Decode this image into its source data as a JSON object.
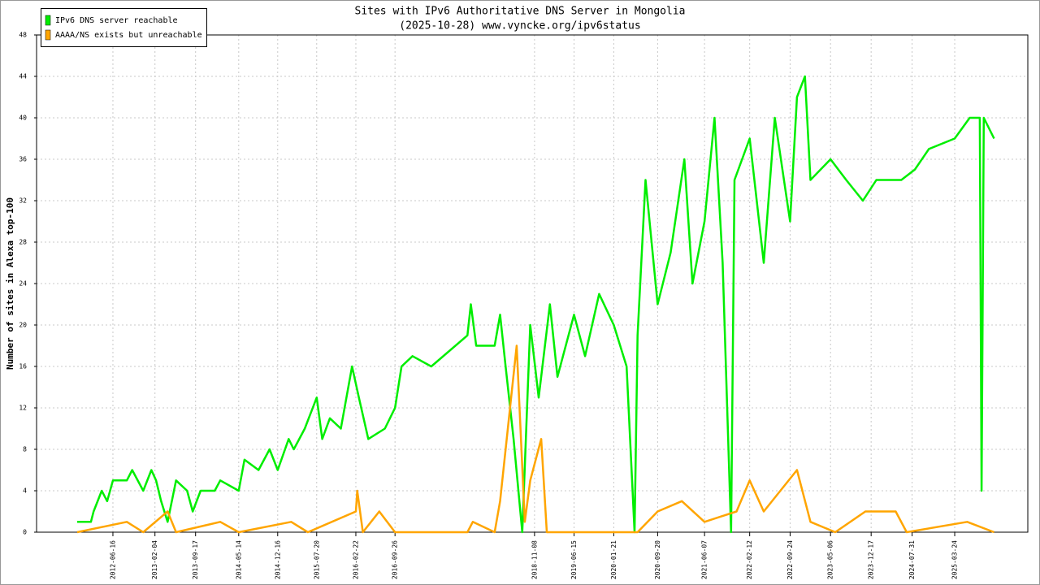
{
  "chart_data": {
    "type": "line",
    "title": "Sites with IPv6 Authoritative DNS Server in Mongolia",
    "subtitle": "(2025-10-28) www.vyncke.org/ipv6status",
    "y_label": "Number of sites in Alexa top-100",
    "xlim": [
      "2011-04-20",
      "2026-05-03"
    ],
    "xticks": [
      "2012-06-16",
      "2013-02-04",
      "2013-09-17",
      "2014-05-14",
      "2014-12-16",
      "2015-07-20",
      "2016-02-22",
      "2016-09-26",
      "2018-11-08",
      "2019-06-15",
      "2020-01-21",
      "2020-09-20",
      "2021-06-07",
      "2022-02-12",
      "2022-09-24",
      "2023-05-06",
      "2023-12-17",
      "2024-07-31",
      "2025-03-24"
    ],
    "ylim": [
      0,
      48
    ],
    "yticks": [
      0,
      4,
      8,
      12,
      16,
      20,
      24,
      28,
      32,
      36,
      40,
      44,
      48
    ],
    "grid": true,
    "legend": "top-left",
    "series": [
      {
        "name": "IPv6 DNS server reachable",
        "color": "#00ee00",
        "x": [
          "2011-12-01",
          "2012-02-15",
          "2012-03-01",
          "2012-04-15",
          "2012-05-15",
          "2012-06-16",
          "2012-09-01",
          "2012-10-01",
          "2012-12-01",
          "2013-01-15",
          "2013-02-10",
          "2013-03-10",
          "2013-04-15",
          "2013-06-01",
          "2013-08-01",
          "2013-09-01",
          "2013-10-15",
          "2014-01-01",
          "2014-02-01",
          "2014-05-14",
          "2014-06-15",
          "2014-09-01",
          "2014-11-01",
          "2014-12-16",
          "2015-02-15",
          "2015-03-15",
          "2015-05-15",
          "2015-07-20",
          "2015-08-20",
          "2015-10-01",
          "2015-12-01",
          "2016-02-01",
          "2016-03-10",
          "2016-05-01",
          "2016-08-01",
          "2016-09-26",
          "2016-11-01",
          "2017-01-01",
          "2017-04-15",
          "2017-11-01",
          "2017-11-20",
          "2017-12-20",
          "2018-04-01",
          "2018-05-01",
          "2018-06-01",
          "2018-07-15",
          "2018-09-01",
          "2018-10-15",
          "2018-12-01",
          "2019-02-01",
          "2019-03-15",
          "2019-06-15",
          "2019-08-15",
          "2019-11-01",
          "2020-01-21",
          "2020-04-01",
          "2020-05-15",
          "2020-06-01",
          "2020-07-15",
          "2020-09-20",
          "2020-12-01",
          "2021-02-15",
          "2021-04-01",
          "2021-06-07",
          "2021-08-01",
          "2021-09-15",
          "2021-11-01",
          "2021-11-20",
          "2022-02-12",
          "2022-05-01",
          "2022-07-01",
          "2022-09-24",
          "2022-11-01",
          "2022-12-15",
          "2023-01-15",
          "2023-05-06",
          "2023-08-01",
          "2023-11-01",
          "2024-01-15",
          "2024-06-01",
          "2024-08-15",
          "2024-11-01",
          "2025-03-24",
          "2025-06-15",
          "2025-08-10",
          "2025-08-20",
          "2025-09-01",
          "2025-10-28"
        ],
        "values": [
          1,
          1,
          2,
          4,
          3,
          5,
          5,
          6,
          4,
          6,
          5,
          3,
          1,
          5,
          4,
          2,
          4,
          4,
          5,
          4,
          7,
          6,
          8,
          6,
          9,
          8,
          10,
          13,
          9,
          11,
          10,
          16,
          13,
          9,
          10,
          12,
          16,
          17,
          16,
          19,
          22,
          18,
          18,
          21,
          16,
          9,
          0,
          20,
          13,
          22,
          15,
          21,
          17,
          23,
          20,
          16,
          0,
          19,
          34,
          22,
          27,
          36,
          24,
          30,
          40,
          26,
          0,
          34,
          38,
          26,
          40,
          30,
          42,
          44,
          34,
          36,
          34,
          32,
          34,
          34,
          35,
          37,
          38,
          40,
          40,
          4,
          40,
          38
        ]
      },
      {
        "name": "AAAA/NS exists but unreachable",
        "color": "#ffa500",
        "x": [
          "2011-12-01",
          "2012-09-01",
          "2012-12-01",
          "2013-04-15",
          "2013-06-01",
          "2014-02-01",
          "2014-05-14",
          "2015-03-01",
          "2015-06-01",
          "2016-02-22",
          "2016-03-01",
          "2016-04-01",
          "2016-07-01",
          "2016-09-26",
          "2017-11-01",
          "2017-12-01",
          "2018-04-01",
          "2018-05-01",
          "2018-08-01",
          "2018-09-15",
          "2018-10-15",
          "2018-12-15",
          "2019-01-15",
          "2020-06-01",
          "2020-09-20",
          "2021-02-01",
          "2021-06-07",
          "2021-12-01",
          "2022-02-12",
          "2022-05-01",
          "2022-11-01",
          "2023-01-15",
          "2023-06-01",
          "2023-11-15",
          "2024-05-01",
          "2024-07-01",
          "2025-06-01",
          "2025-10-28"
        ],
        "values": [
          0,
          1,
          0,
          2,
          0,
          1,
          0,
          1,
          0,
          2,
          4,
          0,
          2,
          0,
          0,
          1,
          0,
          3,
          18,
          1,
          5,
          9,
          0,
          0,
          2,
          3,
          1,
          2,
          5,
          2,
          6,
          1,
          0,
          2,
          2,
          0,
          1,
          0
        ]
      }
    ]
  }
}
